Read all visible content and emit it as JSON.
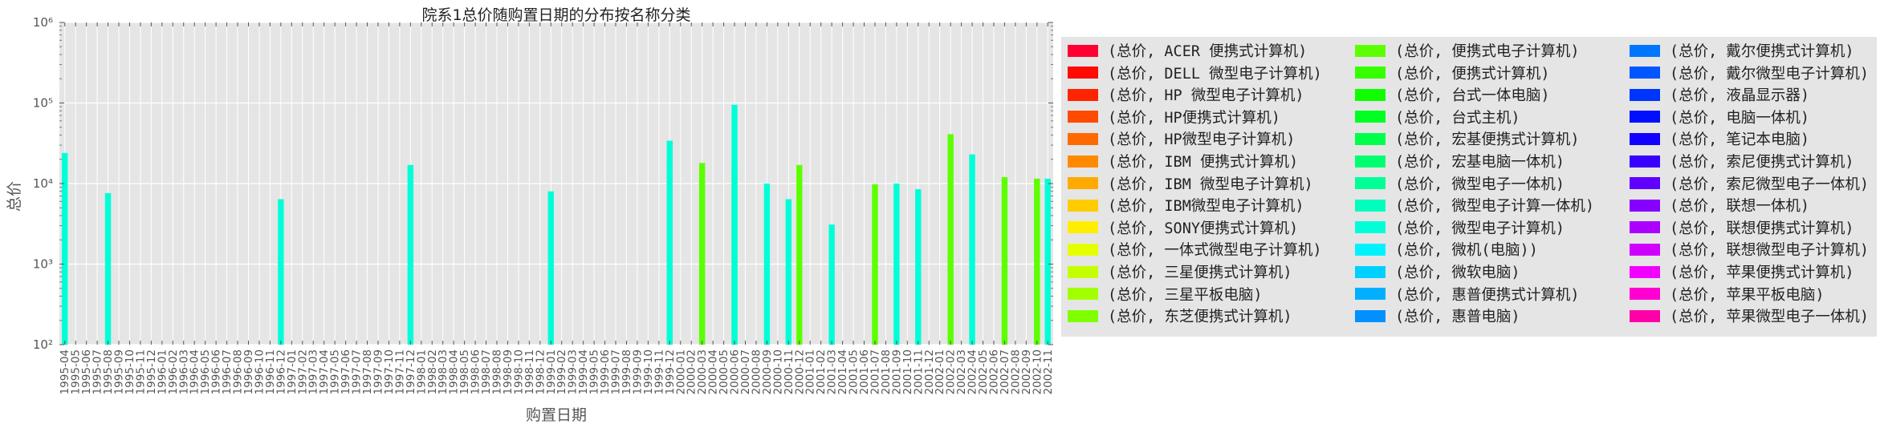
{
  "chart_data": {
    "type": "bar",
    "title": "院系1总价随购置日期的分布按名称分类",
    "xlabel": "购置日期",
    "ylabel": "总价",
    "yscale": "log",
    "ylim": [
      100,
      1000000
    ],
    "y_ticks": [
      {
        "value": 100,
        "label": "10²"
      },
      {
        "value": 1000,
        "label": "10³"
      },
      {
        "value": 10000,
        "label": "10⁴"
      },
      {
        "value": 100000,
        "label": "10⁵"
      },
      {
        "value": 1000000,
        "label": "10⁶"
      }
    ],
    "grid": true,
    "legend_placement": "outside right, 3 columns",
    "categories": [
      "1995-04",
      "1995-05",
      "1995-06",
      "1995-07",
      "1995-08",
      "1995-09",
      "1995-10",
      "1995-11",
      "1995-12",
      "1996-01",
      "1996-02",
      "1996-03",
      "1996-04",
      "1996-05",
      "1996-06",
      "1996-07",
      "1996-08",
      "1996-09",
      "1996-10",
      "1996-11",
      "1996-12",
      "1997-01",
      "1997-02",
      "1997-03",
      "1997-04",
      "1997-05",
      "1997-06",
      "1997-07",
      "1997-08",
      "1997-09",
      "1997-10",
      "1997-11",
      "1997-12",
      "1998-01",
      "1998-02",
      "1998-03",
      "1998-04",
      "1998-05",
      "1998-06",
      "1998-07",
      "1998-08",
      "1998-09",
      "1998-10",
      "1998-11",
      "1998-12",
      "1999-01",
      "1999-02",
      "1999-03",
      "1999-04",
      "1999-05",
      "1999-06",
      "1999-07",
      "1999-08",
      "1999-09",
      "1999-10",
      "1999-11",
      "1999-12",
      "2000-01",
      "2000-02",
      "2000-03",
      "2000-04",
      "2000-05",
      "2000-06",
      "2000-07",
      "2000-08",
      "2000-09",
      "2000-10",
      "2000-11",
      "2000-12",
      "2001-01",
      "2001-02",
      "2001-03",
      "2001-04",
      "2001-05",
      "2001-06",
      "2001-07",
      "2001-08",
      "2001-09",
      "2001-10",
      "2001-11",
      "2001-12",
      "2002-01",
      "2002-02",
      "2002-03",
      "2002-04",
      "2002-05",
      "2002-06",
      "2002-07",
      "2002-08",
      "2002-09",
      "2002-10",
      "2002-11"
    ],
    "bars": [
      {
        "x": "1995-04",
        "series": "(总价, 微型电子计算机)",
        "value": 24000
      },
      {
        "x": "1995-08",
        "series": "(总价, 微型电子计算机)",
        "value": 7600
      },
      {
        "x": "1996-12",
        "series": "(总价, 微型电子计算机)",
        "value": 6400
      },
      {
        "x": "1997-12",
        "series": "(总价, 微型电子计算机)",
        "value": 17000
      },
      {
        "x": "1999-01",
        "series": "(总价, 微型电子计算机)",
        "value": 8000
      },
      {
        "x": "1999-12",
        "series": "(总价, 便携式电子计算机)",
        "value": 20000
      },
      {
        "x": "1999-12",
        "series": "(总价, 微型电子计算机)",
        "value": 34000
      },
      {
        "x": "2000-03",
        "series": "(总价, 便携式电子计算机)",
        "value": 18000
      },
      {
        "x": "2000-06",
        "series": "(总价, 便携式电子计算机)",
        "value": 17000
      },
      {
        "x": "2000-06",
        "series": "(总价, 微型电子计算机)",
        "value": 95000
      },
      {
        "x": "2000-09",
        "series": "(总价, 微型电子计算机)",
        "value": 10000
      },
      {
        "x": "2000-11",
        "series": "(总价, 微型电子计算机)",
        "value": 6400
      },
      {
        "x": "2000-12",
        "series": "(总价, 便携式电子计算机)",
        "value": 17000
      },
      {
        "x": "2001-03",
        "series": "(总价, 微型电子计算机)",
        "value": 3100
      },
      {
        "x": "2001-07",
        "series": "(总价, 便携式电子计算机)",
        "value": 9800
      },
      {
        "x": "2001-09",
        "series": "(总价, 微型电子计算机)",
        "value": 10000
      },
      {
        "x": "2001-11",
        "series": "(总价, 微型电子计算机)",
        "value": 8500
      },
      {
        "x": "2002-02",
        "series": "(总价, 便携式电子计算机)",
        "value": 41000
      },
      {
        "x": "2002-04",
        "series": "(总价, 微型电子计算机)",
        "value": 23000
      },
      {
        "x": "2002-07",
        "series": "(总价, 便携式电子计算机)",
        "value": 12000
      },
      {
        "x": "2002-10",
        "series": "(总价, 便携式电子计算机)",
        "value": 11500
      },
      {
        "x": "2002-11",
        "series": "(总价, 微型电子计算机)",
        "value": 11500
      }
    ],
    "series": [
      {
        "name": "(总价, ACER 便携式计算机)",
        "color": "#ff0033"
      },
      {
        "name": "(总价, DELL 微型电子计算机)",
        "color": "#ff0a00"
      },
      {
        "name": "(总价, HP 微型电子计算机)",
        "color": "#ff2400"
      },
      {
        "name": "(总价, HP便携式计算机)",
        "color": "#ff4a00"
      },
      {
        "name": "(总价, HP微型电子计算机)",
        "color": "#ff6a00"
      },
      {
        "name": "(总价, IBM 便携式计算机)",
        "color": "#ff8a00"
      },
      {
        "name": "(总价, IBM 微型电子计算机)",
        "color": "#ffaa00"
      },
      {
        "name": "(总价, IBM微型电子计算机)",
        "color": "#ffcc00"
      },
      {
        "name": "(总价, SONY便携式计算机)",
        "color": "#ffee00"
      },
      {
        "name": "(总价, 一体式微型电子计算机)",
        "color": "#e6ff00"
      },
      {
        "name": "(总价, 三星便携式计算机)",
        "color": "#c4ff00"
      },
      {
        "name": "(总价, 三星平板电脑)",
        "color": "#a2ff00"
      },
      {
        "name": "(总价, 东芝便携式计算机)",
        "color": "#80ff00"
      },
      {
        "name": "(总价, 便携式电子计算机)",
        "color": "#5cff00"
      },
      {
        "name": "(总价, 便携式计算机)",
        "color": "#36ff00"
      },
      {
        "name": "(总价, 台式一体电脑)",
        "color": "#10ff00"
      },
      {
        "name": "(总价, 台式主机)",
        "color": "#00ff22"
      },
      {
        "name": "(总价, 宏基便携式计算机)",
        "color": "#00ff4a"
      },
      {
        "name": "(总价, 宏基电脑一体机)",
        "color": "#00ff70"
      },
      {
        "name": "(总价, 微型电子一体机)",
        "color": "#00ff96"
      },
      {
        "name": "(总价, 微型电子计算一体机)",
        "color": "#00ffbc"
      },
      {
        "name": "(总价, 微型电子计算机)",
        "color": "#00ffd8"
      },
      {
        "name": "(总价, 微机(电脑))",
        "color": "#00f2ff"
      },
      {
        "name": "(总价, 微软电脑)",
        "color": "#00d0ff"
      },
      {
        "name": "(总价, 惠普便携式计算机)",
        "color": "#00b0ff"
      },
      {
        "name": "(总价, 惠普电脑)",
        "color": "#0090ff"
      },
      {
        "name": "(总价, 戴尔便携式计算机)",
        "color": "#0076ff"
      },
      {
        "name": "(总价, 戴尔微型电子计算机)",
        "color": "#0056ff"
      },
      {
        "name": "(总价, 液晶显示器)",
        "color": "#0034ff"
      },
      {
        "name": "(总价, 电脑一体机)",
        "color": "#0010ff"
      },
      {
        "name": "(总价, 笔记本电脑)",
        "color": "#1400ff"
      },
      {
        "name": "(总价, 索尼便携式计算机)",
        "color": "#3a00ff"
      },
      {
        "name": "(总价, 索尼微型电子一体机)",
        "color": "#6000ff"
      },
      {
        "name": "(总价, 联想一体机)",
        "color": "#8600ff"
      },
      {
        "name": "(总价, 联想便携式计算机)",
        "color": "#ac00ff"
      },
      {
        "name": "(总价, 联想微型电子计算机)",
        "color": "#d000ff"
      },
      {
        "name": "(总价, 苹果便携式计算机)",
        "color": "#f200ff"
      },
      {
        "name": "(总价, 苹果平板电脑)",
        "color": "#ff00d0"
      },
      {
        "name": "(总价, 苹果微型电子一体机)",
        "color": "#ff00a8"
      }
    ]
  }
}
